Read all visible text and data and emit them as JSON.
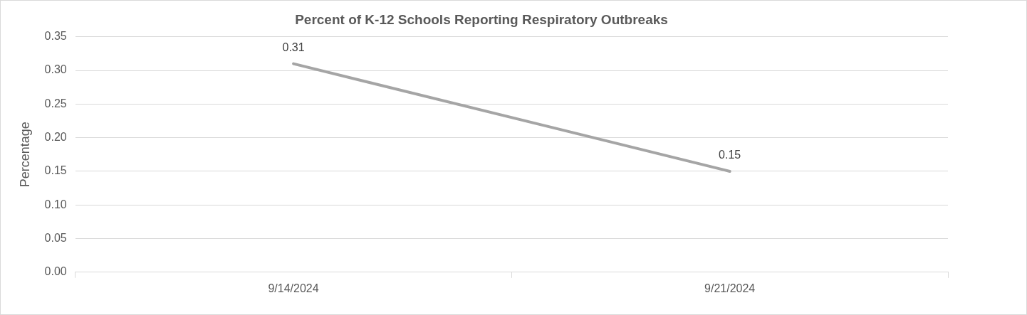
{
  "chart_data": {
    "type": "line",
    "title": "Percent of K-12 Schools Reporting Respiratory Outbreaks",
    "ylabel": "Percentage",
    "categories": [
      "9/14/2024",
      "9/21/2024"
    ],
    "series": [
      {
        "color": "#a5a5a5",
        "values": [
          0.31,
          0.15
        ]
      }
    ],
    "ylim": [
      0,
      0.35
    ],
    "yticks": [
      {
        "value": 0,
        "label": "0.00"
      },
      {
        "value": 0.05,
        "label": "0.05"
      },
      {
        "value": 0.1,
        "label": "0.10"
      },
      {
        "value": 0.15,
        "label": "0.15"
      },
      {
        "value": 0.2,
        "label": "0.20"
      },
      {
        "value": 0.25,
        "label": "0.25"
      },
      {
        "value": 0.3,
        "label": "0.30"
      },
      {
        "value": 0.35,
        "label": "0.35"
      }
    ],
    "grid": "y",
    "legend": false,
    "marker": "none",
    "line_style": "solid",
    "data_labels": true
  }
}
